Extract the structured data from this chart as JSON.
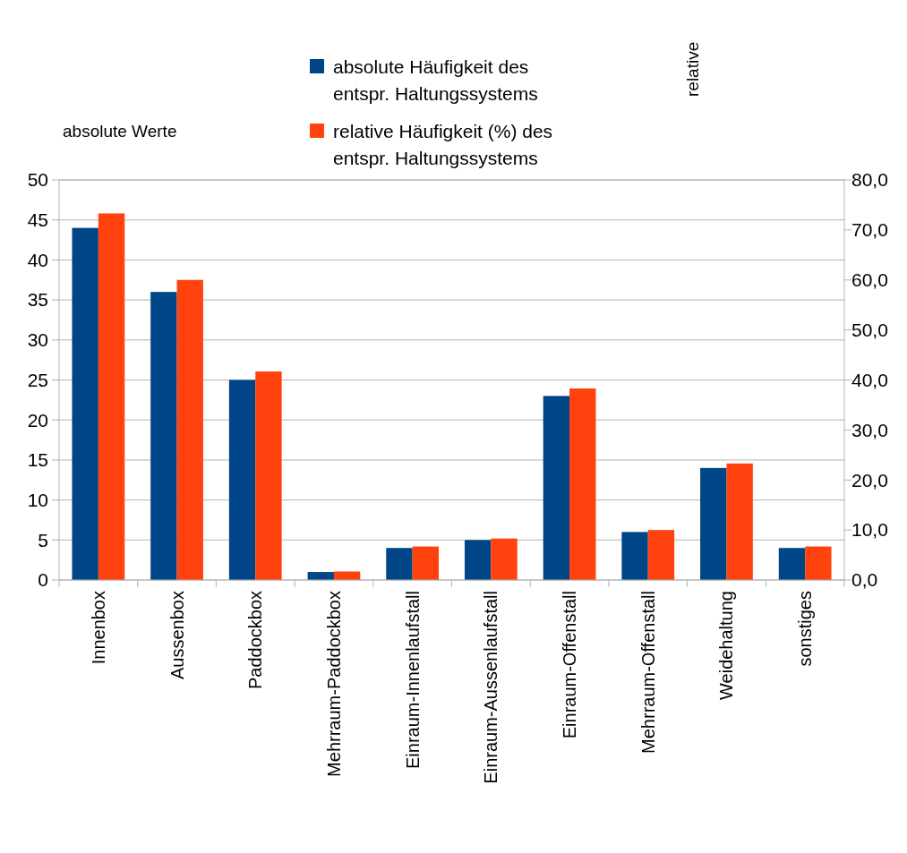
{
  "chart_data": {
    "type": "bar",
    "ylabel": "absolute Werte",
    "y2label": "relative",
    "categories": [
      "Innenbox",
      "Aussenbox",
      "Paddockbox",
      "Mehrraum-Paddockbox",
      "Einraum-Innenlaufstall",
      "Einraum-Aussenlaufstall",
      "Einraum-Offenstall",
      "Mehrraum-Offenstall",
      "Weidehaltung",
      "sonstiges"
    ],
    "series": [
      {
        "name": "absolute Häufigkeit des entspr. Haltungssystems",
        "color": "#004586",
        "values": [
          44,
          36,
          25,
          1,
          4,
          5,
          23,
          6,
          14,
          4
        ]
      },
      {
        "name": "relative Häufigkeit (%) des entspr. Haltungssystems",
        "color": "#ff420e",
        "axis": "y2",
        "values": [
          73.3,
          60,
          41.7,
          1.7,
          6.7,
          8.3,
          38.3,
          10,
          23.3,
          6.7
        ]
      }
    ],
    "ylim": [
      0,
      50
    ],
    "yticks": [
      0,
      5,
      10,
      15,
      20,
      25,
      30,
      35,
      40,
      45,
      50
    ],
    "y2lim": [
      0,
      80
    ],
    "y2ticks": [
      {
        "value": 0,
        "label": "0,0"
      },
      {
        "value": 10,
        "label": "10,0"
      },
      {
        "value": 20,
        "label": "20,0"
      },
      {
        "value": 30,
        "label": "30,0"
      },
      {
        "value": 40,
        "label": "40,0"
      },
      {
        "value": 50,
        "label": "50,0"
      },
      {
        "value": 60,
        "label": "60,0"
      },
      {
        "value": 70,
        "label": "70,0"
      },
      {
        "value": 80,
        "label": "80,0"
      }
    ],
    "grid": "y",
    "legend": "top"
  }
}
